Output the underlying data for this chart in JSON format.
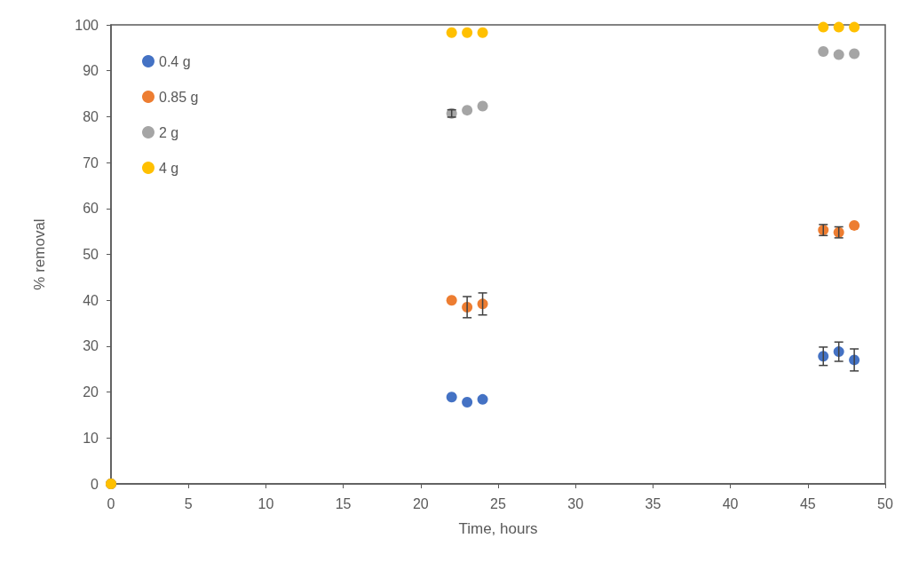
{
  "chart_data": {
    "type": "scatter",
    "xlabel": "Time, hours",
    "ylabel": "% removal",
    "x": [
      0,
      22,
      23,
      24,
      46,
      47,
      48
    ],
    "series": [
      {
        "name": "0.4 g",
        "color": "#4472c4",
        "values": [
          0,
          18.9,
          17.8,
          18.4,
          27.8,
          28.8,
          27.0
        ],
        "errors": [
          null,
          null,
          null,
          null,
          2.0,
          2.1,
          2.4
        ]
      },
      {
        "name": "0.85 g",
        "color": "#ed7d31",
        "values": [
          0,
          40.0,
          38.5,
          39.2,
          55.3,
          54.8,
          56.3
        ],
        "errors": [
          null,
          null,
          2.3,
          2.4,
          1.2,
          1.2,
          null
        ]
      },
      {
        "name": "2 g",
        "color": "#a5a5a5",
        "values": [
          0,
          80.7,
          81.4,
          82.3,
          94.2,
          93.5,
          93.7
        ],
        "errors": [
          null,
          0.8,
          null,
          null,
          null,
          null,
          null
        ]
      },
      {
        "name": "4 g",
        "color": "#ffc000",
        "values": [
          0,
          98.3,
          98.3,
          98.3,
          99.5,
          99.5,
          99.5
        ]
      }
    ],
    "xlim": [
      0,
      50
    ],
    "xticks": [
      0,
      5,
      10,
      15,
      20,
      25,
      30,
      35,
      40,
      45,
      50
    ],
    "ylim": [
      0,
      100
    ],
    "yticks": [
      0,
      10,
      20,
      30,
      40,
      50,
      60,
      70,
      80,
      90,
      100
    ],
    "legend": "top left",
    "marker": "circle"
  }
}
